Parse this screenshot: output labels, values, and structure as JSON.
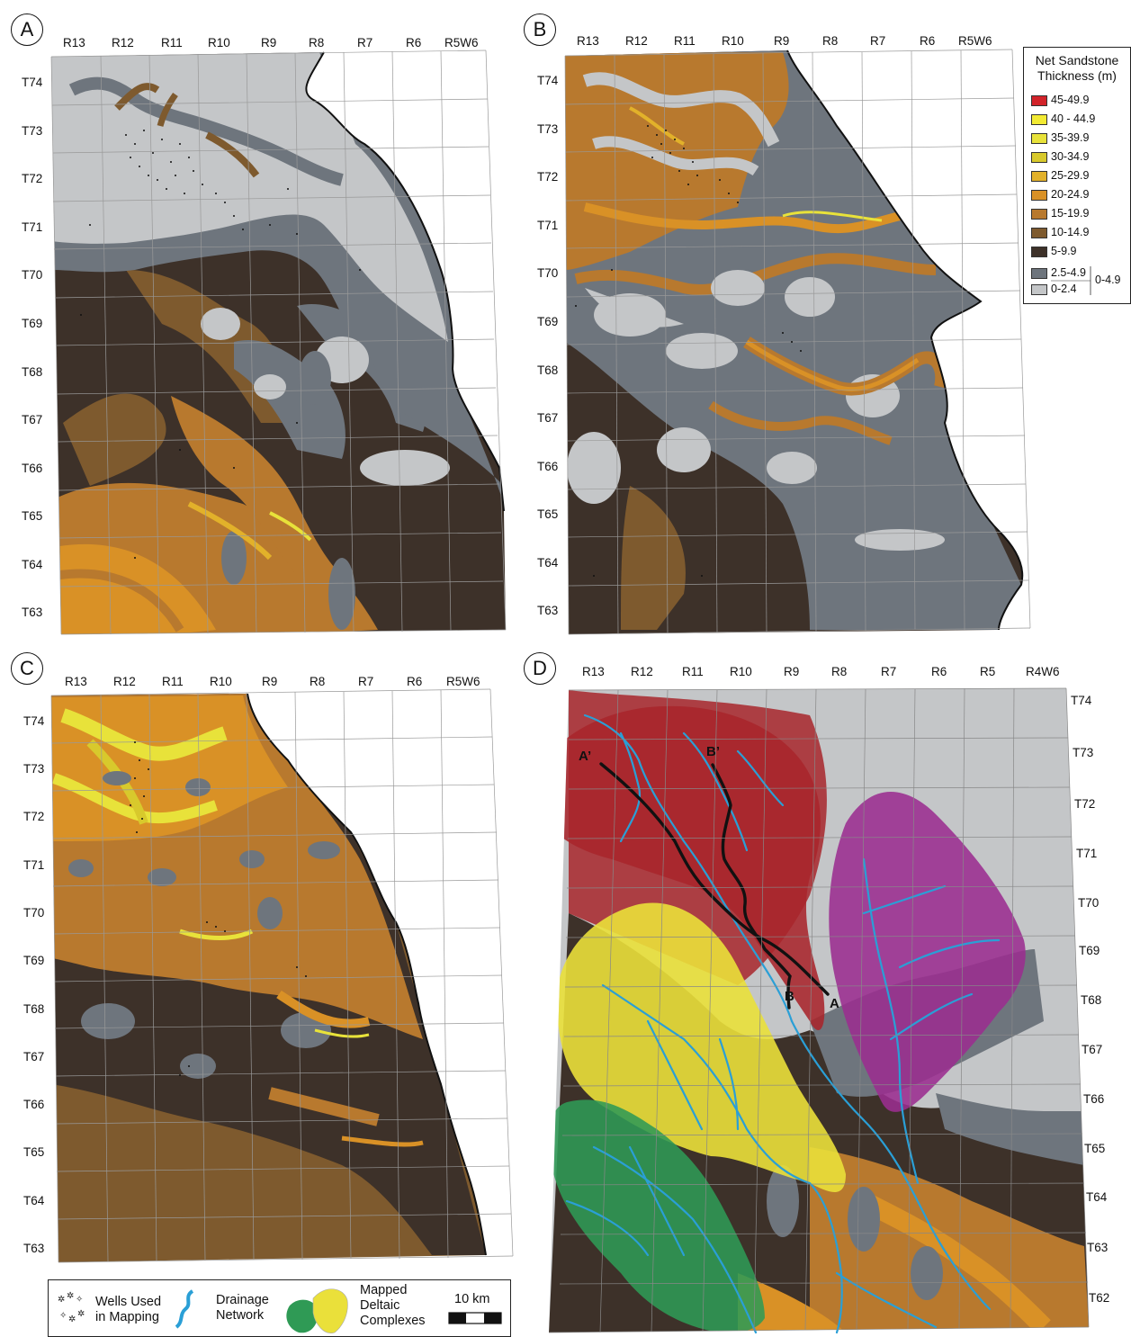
{
  "panels": [
    {
      "id": "A",
      "letter": "A",
      "ranges": [
        "R13",
        "R12",
        "R11",
        "R10",
        "R9",
        "R8",
        "R7",
        "R6",
        "R5W6"
      ],
      "townships": [
        "T74",
        "T73",
        "T72",
        "T71",
        "T70",
        "T69",
        "T68",
        "T67",
        "T66",
        "T65",
        "T64",
        "T63"
      ]
    },
    {
      "id": "B",
      "letter": "B",
      "ranges": [
        "R13",
        "R12",
        "R11",
        "R10",
        "R9",
        "R8",
        "R7",
        "R6",
        "R5W6"
      ],
      "townships": [
        "T74",
        "T73",
        "T72",
        "T71",
        "T70",
        "T69",
        "T68",
        "T67",
        "T66",
        "T65",
        "T64",
        "T63"
      ]
    },
    {
      "id": "C",
      "letter": "C",
      "ranges": [
        "R13",
        "R12",
        "R11",
        "R10",
        "R9",
        "R8",
        "R7",
        "R6",
        "R5W6"
      ],
      "townships": [
        "T74",
        "T73",
        "T72",
        "T71",
        "T70",
        "T69",
        "T68",
        "T67",
        "T66",
        "T65",
        "T64",
        "T63"
      ]
    },
    {
      "id": "D",
      "letter": "D",
      "ranges": [
        "R13",
        "R12",
        "R11",
        "R10",
        "R9",
        "R8",
        "R7",
        "R6",
        "R5",
        "R4W6"
      ],
      "townships": [
        "T74",
        "T73",
        "T72",
        "T71",
        "T70",
        "T69",
        "T68",
        "T67",
        "T66",
        "T65",
        "T64",
        "T63",
        "T62"
      ]
    }
  ],
  "legend": {
    "title_line1": "Net Sandstone",
    "title_line2": "Thickness (m)",
    "classes": [
      {
        "label": "45-49.9",
        "color": "#d2232a"
      },
      {
        "label": "40 - 44.9",
        "color": "#f2ea33"
      },
      {
        "label": "35-39.9",
        "color": "#e8e23a"
      },
      {
        "label": "30-34.9",
        "color": "#d8c92c"
      },
      {
        "label": "25-29.9",
        "color": "#e2b12a"
      },
      {
        "label": "20-24.9",
        "color": "#d99126"
      },
      {
        "label": "15-19.9",
        "color": "#b8792e"
      },
      {
        "label": "10-14.9",
        "color": "#7e5a2e"
      },
      {
        "label": "5-9.9",
        "color": "#3d3129"
      },
      {
        "label": "2.5-4.9",
        "color": "#6e757d"
      },
      {
        "label": "0-2.4",
        "color": "#c4c6c8"
      }
    ],
    "group_label": "0-4.9"
  },
  "section_labels": {
    "a_prime": "A’",
    "b_prime": "B’",
    "a": "A",
    "b": "B"
  },
  "bottom_legend": {
    "wells_line1": "Wells Used",
    "wells_line2": "in Mapping",
    "drainage_line1": "Drainage",
    "drainage_line2": "Network",
    "deltaic_line1": "Mapped",
    "deltaic_line2": "Deltaic",
    "deltaic_line3": "Complexes",
    "scale_label": "10 km"
  },
  "colors": {
    "thin": "#c4c6c8",
    "gray": "#6e757d",
    "dark": "#3d3129",
    "brown": "#7e5a2e",
    "orange": "#b8792e",
    "gold": "#d99126",
    "yellow": "#e8e23a",
    "complex_red": "#a8262b",
    "complex_purple": "#9b2d8f",
    "complex_yellow": "#eae03a",
    "complex_green": "#2f9a55",
    "drainage": "#2a9fd6"
  }
}
